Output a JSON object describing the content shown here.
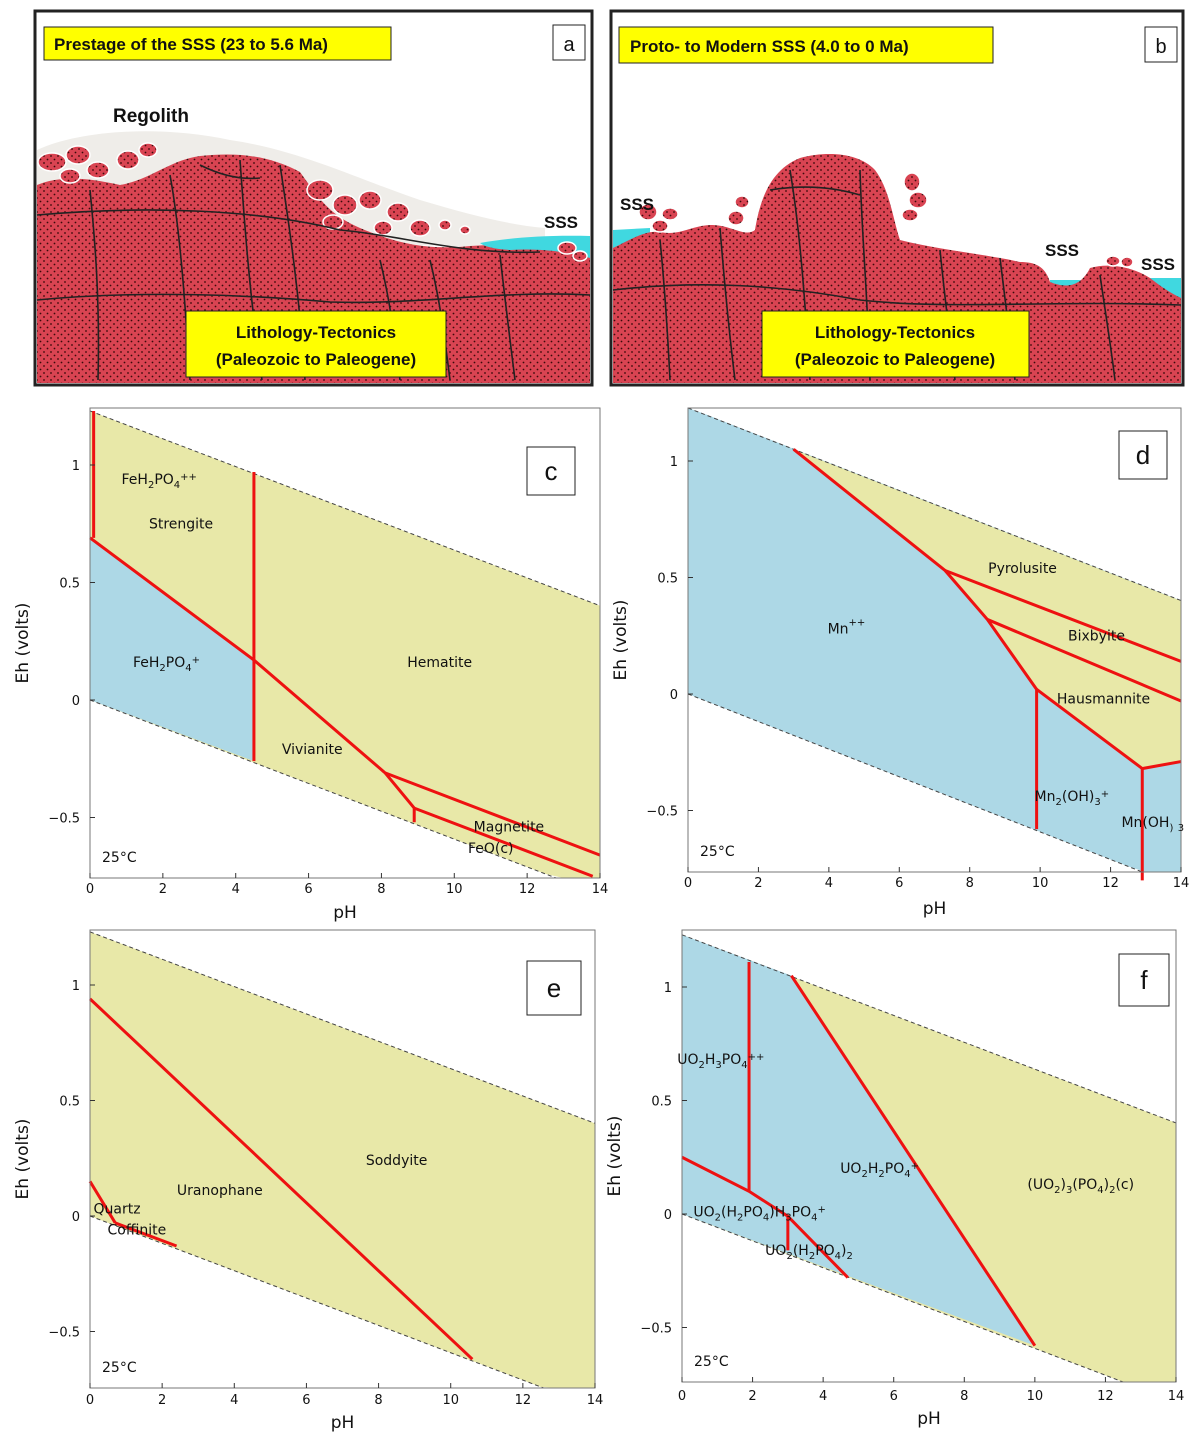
{
  "panels": {
    "a": {
      "letter": "a",
      "title": "Prestage of the SSS (23 to 5.6 Ma)",
      "labels": [
        "Regolith",
        "SSS"
      ],
      "lithology": [
        "Lithology-Tectonics",
        "(Paleozoic to Paleogene)"
      ]
    },
    "b": {
      "letter": "b",
      "title": "Proto- to Modern SSS (4.0 to 0 Ma)",
      "labels": [
        "SSS",
        "SSS",
        "SSS"
      ],
      "lithology": [
        "Lithology-Tectonics",
        "(Paleozoic to Paleogene)"
      ]
    }
  },
  "diagram_common": {
    "xlabel": "pH",
    "ylabel": "Eh (volts)",
    "temperature": "25°C",
    "x_ticks": [
      "0",
      "2",
      "4",
      "6",
      "8",
      "10",
      "12",
      "14"
    ],
    "y_ticks": [
      "1",
      "0.5",
      "0",
      "−0.5"
    ],
    "colors": {
      "aqueous": "#add8e6",
      "solid": "#e8e8a8",
      "boundary": "#ee1111"
    }
  },
  "diagrams": [
    {
      "letter": "c",
      "fields": [
        {
          "text": "FeH2PO4++",
          "main": "FeH",
          "sub1": "2",
          "mid": "PO",
          "sub2": "4",
          "sup": "++",
          "ph": 1.9,
          "eh": 0.92
        },
        {
          "text": "Strengite",
          "main": "Strengite",
          "ph": 2.5,
          "eh": 0.73
        },
        {
          "text": "FeH2PO4+",
          "main": "FeH",
          "sub1": "2",
          "mid": "PO",
          "sub2": "4",
          "sup": "+",
          "ph": 2.1,
          "eh": 0.14
        },
        {
          "text": "Hematite",
          "main": "Hematite",
          "ph": 9.6,
          "eh": 0.14
        },
        {
          "text": "Vivianite",
          "main": "Vivianite",
          "ph": 6.1,
          "eh": -0.23
        },
        {
          "text": "Magnetite",
          "main": "Magnetite",
          "ph": 11.5,
          "eh": -0.56
        },
        {
          "text": "FeO(c)",
          "main": "FeO(c)",
          "ph": 11.0,
          "eh": -0.65
        }
      ]
    },
    {
      "letter": "d",
      "fields": [
        {
          "text": "Pyrolusite",
          "main": "Pyrolusite",
          "ph": 9.5,
          "eh": 0.52
        },
        {
          "text": "Mn++",
          "main": "Mn",
          "sup": "++",
          "ph": 4.5,
          "eh": 0.26
        },
        {
          "text": "Bixbyite",
          "main": "Bixbyite",
          "ph": 11.6,
          "eh": 0.23
        },
        {
          "text": "Hausmannite",
          "main": "Hausmannite",
          "ph": 11.8,
          "eh": -0.04
        },
        {
          "text": "Mn2(OH)3+",
          "main": "Mn",
          "sub1": "2",
          "mid": "(OH)",
          "sub2": "3",
          "sup": "+",
          "ph": 10.9,
          "eh": -0.46
        },
        {
          "text": "Mn(OH)3",
          "main": "Mn(OH",
          "sub1": ")",
          "mid": "",
          "sub2": "3",
          "ph": 13.2,
          "eh": -0.57
        }
      ]
    },
    {
      "letter": "e",
      "fields": [
        {
          "text": "Soddyite",
          "main": "Soddyite",
          "ph": 8.5,
          "eh": 0.22
        },
        {
          "text": "Uranophane",
          "main": "Uranophane",
          "ph": 3.6,
          "eh": 0.09
        },
        {
          "text": "Quartz",
          "main": "Quartz",
          "ph": 0.75,
          "eh": 0.01
        },
        {
          "text": "Coffinite",
          "main": "Coffinite",
          "ph": 1.3,
          "eh": -0.08
        }
      ]
    },
    {
      "letter": "f",
      "fields": [
        {
          "text": "UO2H3PO4++",
          "main": "UO",
          "sub1": "2",
          "mid": "H",
          "sub2": "3",
          "end": "PO",
          "sub3": "4",
          "sup": "++",
          "ph": 1.1,
          "eh": 0.66
        },
        {
          "text": "UO2H2PO4+",
          "main": "UO",
          "sub1": "2",
          "mid": "H",
          "sub2": "2",
          "end": "PO",
          "sub3": "4",
          "sup": "+",
          "ph": 5.6,
          "eh": 0.18
        },
        {
          "text": "(UO2)3(PO4)2(c)",
          "main": "(UO",
          "sub1": "2",
          "mid": ")",
          "sub2": "3",
          "end": "(PO",
          "sub3": "4",
          "tail": ")",
          "sub4": "2",
          "after": "(c)",
          "ph": 11.3,
          "eh": 0.11
        },
        {
          "text": "UO2(H2PO4)H3PO4+",
          "main": "UO",
          "sub1": "2",
          "mid": "(H",
          "sub2": "2",
          "end": "PO",
          "sub3": "4",
          "tail": ")H",
          "sub4": "3",
          "after": "PO",
          "sub5": "4",
          "sup": "+",
          "ph": 2.2,
          "eh": -0.01
        },
        {
          "text": "UO2(H2PO4)2",
          "main": "UO",
          "sub1": "2",
          "mid": "(H",
          "sub2": "2",
          "end": "PO",
          "sub3": "4",
          "tail": ")",
          "sub4": "2",
          "ph": 3.6,
          "eh": -0.18
        }
      ]
    }
  ]
}
